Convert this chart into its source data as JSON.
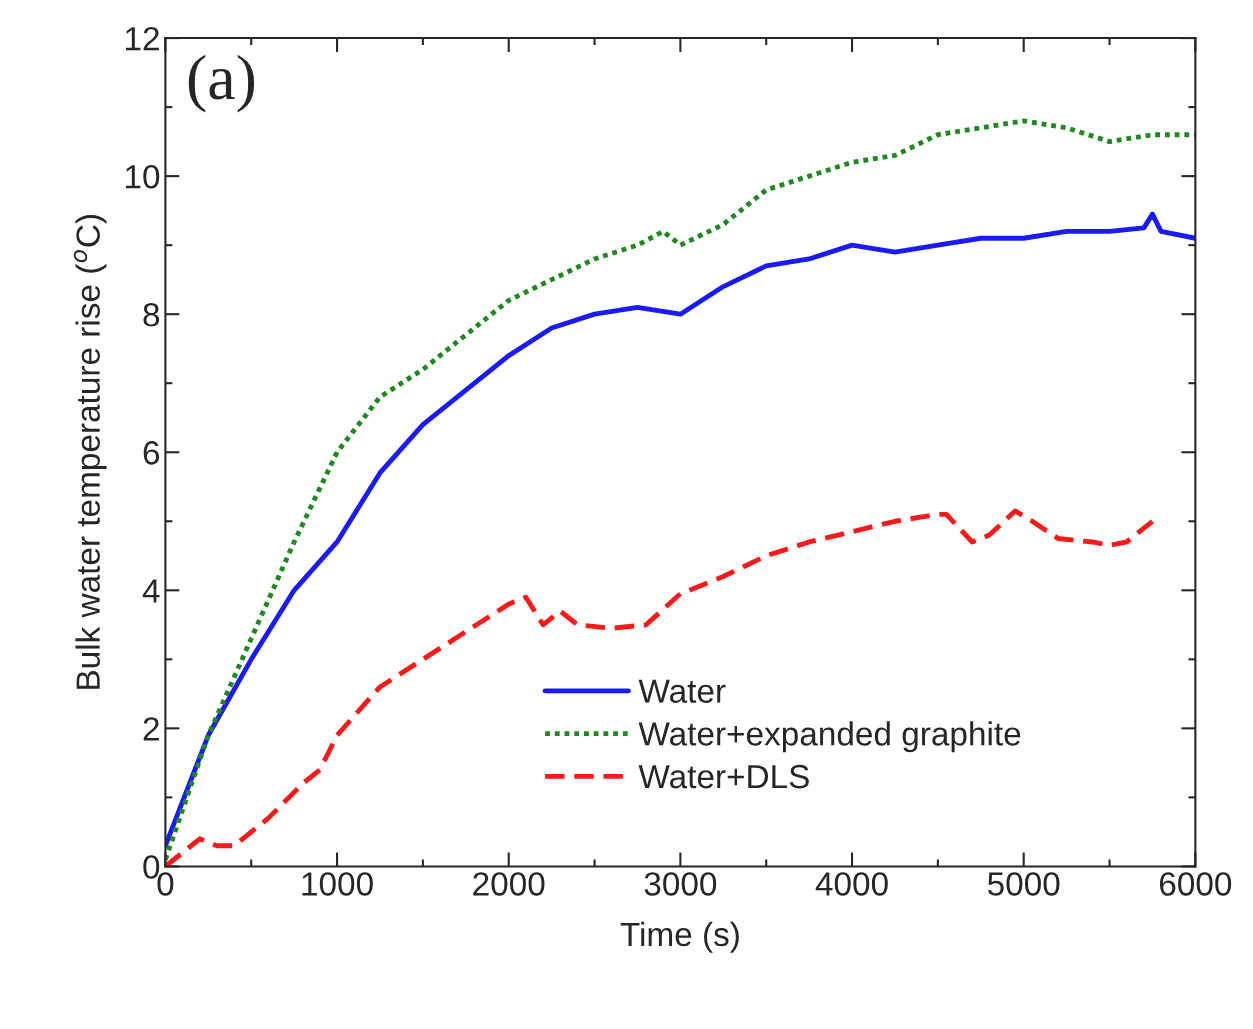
{
  "chart_data": {
    "type": "line",
    "xlabel": "Time (s)",
    "ylabel": "Bulk water temperature rise ($^{o}$C)",
    "annotations": [
      "(a)"
    ],
    "xlim": [
      0,
      6000
    ],
    "ylim": [
      0,
      12
    ],
    "xticks": [
      0,
      1000,
      2000,
      3000,
      4000,
      5000,
      6000
    ],
    "yticks": [
      0,
      2,
      4,
      6,
      8,
      10,
      12
    ],
    "grid": false,
    "legend": "bottom",
    "marker": "none",
    "series": [
      {
        "name": "Water",
        "color": "#1a1aff",
        "line_style": "solid",
        "x": [
          0,
          250,
          500,
          750,
          1000,
          1250,
          1500,
          1750,
          2000,
          2250,
          2500,
          2750,
          3000,
          3250,
          3500,
          3750,
          4000,
          4250,
          4500,
          4750,
          5000,
          5250,
          5500,
          5700,
          5750,
          5800,
          6000
        ],
        "values": [
          0.3,
          1.9,
          3.0,
          4.0,
          4.7,
          5.7,
          6.4,
          6.9,
          7.4,
          7.8,
          8.0,
          8.1,
          8.0,
          8.4,
          8.7,
          8.8,
          9.0,
          8.9,
          9.0,
          9.1,
          9.1,
          9.2,
          9.2,
          9.25,
          9.45,
          9.2,
          9.1
        ]
      },
      {
        "name": "Water+expanded graphite",
        "color": "#1f8a1f",
        "line_style": "dotted",
        "x": [
          0,
          250,
          500,
          750,
          1000,
          1250,
          1500,
          1750,
          2000,
          2250,
          2500,
          2750,
          2900,
          3000,
          3250,
          3500,
          3750,
          4000,
          4250,
          4500,
          4750,
          5000,
          5250,
          5500,
          5750,
          6000
        ],
        "values": [
          0.1,
          1.9,
          3.3,
          4.7,
          6.0,
          6.8,
          7.2,
          7.7,
          8.2,
          8.5,
          8.8,
          9.0,
          9.2,
          9.0,
          9.3,
          9.8,
          10.0,
          10.2,
          10.3,
          10.6,
          10.7,
          10.8,
          10.7,
          10.5,
          10.6,
          10.6
        ]
      },
      {
        "name": "Water+DLS",
        "color": "#ff1a1a",
        "line_style": "dashed",
        "x": [
          0,
          200,
          300,
          400,
          600,
          800,
          900,
          1000,
          1250,
          1500,
          1750,
          2000,
          2100,
          2200,
          2300,
          2400,
          2600,
          2800,
          3000,
          3250,
          3500,
          3750,
          4000,
          4250,
          4500,
          4550,
          4700,
          4800,
          4950,
          5050,
          5200,
          5400,
          5500,
          5600,
          5700,
          5750
        ],
        "values": [
          0,
          0.4,
          0.3,
          0.3,
          0.7,
          1.2,
          1.4,
          1.9,
          2.6,
          3.0,
          3.4,
          3.8,
          3.9,
          3.5,
          3.7,
          3.5,
          3.45,
          3.5,
          3.95,
          4.2,
          4.5,
          4.7,
          4.85,
          5.0,
          5.1,
          5.1,
          4.7,
          4.8,
          5.15,
          5.0,
          4.75,
          4.7,
          4.65,
          4.7,
          4.9,
          5.0
        ]
      }
    ]
  }
}
